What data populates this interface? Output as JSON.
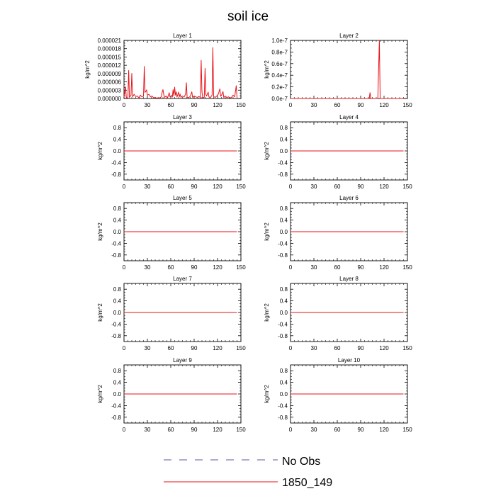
{
  "figure": {
    "title": "soil ice"
  },
  "legend": {
    "entries": [
      {
        "label": "No Obs",
        "color": "#5a5aa0",
        "style": "dashed"
      },
      {
        "label": "1850_149",
        "color": "#e8131a",
        "style": "solid"
      }
    ]
  },
  "chart_data": [
    {
      "type": "line",
      "title": "Layer 1",
      "ylabel": "kg/m^2",
      "xlim": [
        0,
        150
      ],
      "ylim": [
        0,
        2.1e-05
      ],
      "xticks": [
        "0",
        "30",
        "60",
        "90",
        "120",
        "150"
      ],
      "yticks": [
        0,
        3e-06,
        6e-06,
        9e-06,
        1.2e-05,
        1.5e-05,
        1.8e-05,
        2.1e-05
      ],
      "ytick_labels": [
        "0.000000",
        "0.000003",
        "0.000006",
        "0.000009",
        "0.000012",
        "0.000015",
        "0.000018",
        "0.000021"
      ],
      "series": [
        {
          "name": "1850_149",
          "color": "#e8131a",
          "points": [
            [
              0,
              5e-07
            ],
            [
              2,
              4.2e-06
            ],
            [
              3,
              3e-07
            ],
            [
              5,
              1e-07
            ],
            [
              6,
              1.01e-05
            ],
            [
              7,
              4e-07
            ],
            [
              9,
              1.2e-06
            ],
            [
              10,
              9.1e-06
            ],
            [
              11,
              6e-07
            ],
            [
              13,
              1.5e-06
            ],
            [
              15,
              7e-07
            ],
            [
              17,
              9e-07
            ],
            [
              19,
              3e-07
            ],
            [
              21,
              1.2e-06
            ],
            [
              23,
              6e-07
            ],
            [
              25,
              8e-07
            ],
            [
              26,
              1.16e-05
            ],
            [
              27,
              2.2e-06
            ],
            [
              28,
              2.6e-06
            ],
            [
              29,
              3.1e-06
            ],
            [
              30,
              1.2e-06
            ],
            [
              32,
              1.5e-06
            ],
            [
              34,
              6e-07
            ],
            [
              36,
              9e-07
            ],
            [
              38,
              2e-07
            ],
            [
              40,
              4e-07
            ],
            [
              42,
              1e-07
            ],
            [
              44,
              3e-07
            ],
            [
              46,
              1e-07
            ],
            [
              48,
              7e-07
            ],
            [
              49,
              2.3e-06
            ],
            [
              50,
              3.2e-06
            ],
            [
              51,
              1.4e-06
            ],
            [
              52,
              4e-07
            ],
            [
              54,
              9e-07
            ],
            [
              56,
              3e-07
            ],
            [
              58,
              2.1e-06
            ],
            [
              59,
              6e-07
            ],
            [
              61,
              1.1e-06
            ],
            [
              62,
              5e-07
            ],
            [
              63,
              3.2e-06
            ],
            [
              64,
              9e-07
            ],
            [
              65,
              4.1e-06
            ],
            [
              66,
              1.2e-06
            ],
            [
              67,
              2.4e-06
            ],
            [
              68,
              5e-07
            ],
            [
              70,
              2.3e-06
            ],
            [
              71,
              6e-07
            ],
            [
              72,
              1.6e-06
            ],
            [
              73,
              4e-07
            ],
            [
              75,
              9e-07
            ],
            [
              77,
              5e-07
            ],
            [
              79,
              1.5e-06
            ],
            [
              80,
              5.7e-06
            ],
            [
              81,
              4e-07
            ],
            [
              83,
              3e-07
            ],
            [
              85,
              8e-07
            ],
            [
              87,
              2.4e-06
            ],
            [
              88,
              4e-07
            ],
            [
              90,
              9e-07
            ],
            [
              92,
              6e-07
            ],
            [
              94,
              4e-07
            ],
            [
              96,
              7e-07
            ],
            [
              97,
              6e-07
            ],
            [
              98,
              2e-07
            ],
            [
              99,
              1.38e-05
            ],
            [
              100,
              2.5e-06
            ],
            [
              101,
              3e-07
            ],
            [
              103,
              4e-07
            ],
            [
              104,
              1.09e-05
            ],
            [
              105,
              1.5e-06
            ],
            [
              106,
              9e-07
            ],
            [
              108,
              2.3e-06
            ],
            [
              109,
              5e-07
            ],
            [
              111,
              4e-07
            ],
            [
              113,
              1.2e-06
            ],
            [
              114,
              1.84e-05
            ],
            [
              115,
              7e-07
            ],
            [
              117,
              4e-07
            ],
            [
              119,
              9e-07
            ],
            [
              121,
              1.6e-06
            ],
            [
              123,
              3.5e-06
            ],
            [
              124,
              8e-07
            ],
            [
              125,
              1.1e-06
            ],
            [
              126,
              1.8e-06
            ],
            [
              127,
              2.5e-06
            ],
            [
              128,
              4e-07
            ],
            [
              130,
              9e-07
            ],
            [
              132,
              3e-07
            ],
            [
              134,
              6e-07
            ],
            [
              136,
              2e-07
            ],
            [
              138,
              4e-07
            ],
            [
              140,
              1.2e-06
            ],
            [
              142,
              6e-07
            ],
            [
              144,
              4.6e-06
            ],
            [
              145,
              3e-07
            ]
          ]
        }
      ]
    },
    {
      "type": "line",
      "title": "Layer 2",
      "ylabel": "kg/m^2",
      "xlim": [
        0,
        150
      ],
      "ylim": [
        0,
        1e-07
      ],
      "xticks": [
        "0",
        "30",
        "60",
        "90",
        "120",
        "150"
      ],
      "yticks": [
        0,
        2e-08,
        4e-08,
        6e-08,
        8e-08,
        1e-07
      ],
      "ytick_labels": [
        "0.0e-7",
        "0.2e-7",
        "0.4e-7",
        "0.6e-7",
        "0.8e-7",
        "1.0e-7"
      ],
      "series": [
        {
          "name": "1850_149",
          "color": "#e8131a",
          "points": [
            [
              0,
              0
            ],
            [
              101,
              0
            ],
            [
              102,
              1e-08
            ],
            [
              103,
              0
            ],
            [
              112,
              0
            ],
            [
              114,
              1e-07
            ],
            [
              115,
              0
            ],
            [
              145,
              0
            ]
          ]
        }
      ]
    },
    {
      "type": "line",
      "title": "Layer 3",
      "ylabel": "kg/m^2",
      "xlim": [
        0,
        150
      ],
      "ylim": [
        -1,
        1
      ],
      "xticks": [
        "0",
        "30",
        "60",
        "90",
        "120",
        "150"
      ],
      "yticks": [
        -0.8,
        -0.4,
        0,
        0.4,
        0.8
      ],
      "ytick_labels": [
        "-0.8",
        "-0.4",
        "0.0",
        "0.4",
        "0.8"
      ],
      "series": [
        {
          "name": "1850_149",
          "color": "#e8131a",
          "points": [
            [
              0,
              0
            ],
            [
              145,
              0
            ]
          ]
        }
      ]
    },
    {
      "type": "line",
      "title": "Layer 4",
      "ylabel": "kg/m^2",
      "xlim": [
        0,
        150
      ],
      "ylim": [
        -1,
        1
      ],
      "xticks": [
        "0",
        "30",
        "60",
        "90",
        "120",
        "150"
      ],
      "yticks": [
        -0.8,
        -0.4,
        0,
        0.4,
        0.8
      ],
      "ytick_labels": [
        "-0.8",
        "-0.4",
        "0.0",
        "0.4",
        "0.8"
      ],
      "series": [
        {
          "name": "1850_149",
          "color": "#e8131a",
          "points": [
            [
              0,
              0
            ],
            [
              145,
              0
            ]
          ]
        }
      ]
    },
    {
      "type": "line",
      "title": "Layer 5",
      "ylabel": "kg/m^2",
      "xlim": [
        0,
        150
      ],
      "ylim": [
        -1,
        1
      ],
      "xticks": [
        "0",
        "30",
        "60",
        "90",
        "120",
        "150"
      ],
      "yticks": [
        -0.8,
        -0.4,
        0,
        0.4,
        0.8
      ],
      "ytick_labels": [
        "-0.8",
        "-0.4",
        "0.0",
        "0.4",
        "0.8"
      ],
      "series": [
        {
          "name": "1850_149",
          "color": "#e8131a",
          "points": [
            [
              0,
              0
            ],
            [
              145,
              0
            ]
          ]
        }
      ]
    },
    {
      "type": "line",
      "title": "Layer 6",
      "ylabel": "kg/m^2",
      "xlim": [
        0,
        150
      ],
      "ylim": [
        -1,
        1
      ],
      "xticks": [
        "0",
        "30",
        "60",
        "90",
        "120",
        "150"
      ],
      "yticks": [
        -0.8,
        -0.4,
        0,
        0.4,
        0.8
      ],
      "ytick_labels": [
        "-0.8",
        "-0.4",
        "0.0",
        "0.4",
        "0.8"
      ],
      "series": [
        {
          "name": "1850_149",
          "color": "#e8131a",
          "points": [
            [
              0,
              0
            ],
            [
              145,
              0
            ]
          ]
        }
      ]
    },
    {
      "type": "line",
      "title": "Layer 7",
      "ylabel": "kg/m^2",
      "xlim": [
        0,
        150
      ],
      "ylim": [
        -1,
        1
      ],
      "xticks": [
        "0",
        "30",
        "60",
        "90",
        "120",
        "150"
      ],
      "yticks": [
        -0.8,
        -0.4,
        0,
        0.4,
        0.8
      ],
      "ytick_labels": [
        "-0.8",
        "-0.4",
        "0.0",
        "0.4",
        "0.8"
      ],
      "series": [
        {
          "name": "1850_149",
          "color": "#e8131a",
          "points": [
            [
              0,
              0
            ],
            [
              145,
              0
            ]
          ]
        }
      ]
    },
    {
      "type": "line",
      "title": "Layer 8",
      "ylabel": "kg/m^2",
      "xlim": [
        0,
        150
      ],
      "ylim": [
        -1,
        1
      ],
      "xticks": [
        "0",
        "30",
        "60",
        "90",
        "120",
        "150"
      ],
      "yticks": [
        -0.8,
        -0.4,
        0,
        0.4,
        0.8
      ],
      "ytick_labels": [
        "-0.8",
        "-0.4",
        "0.0",
        "0.4",
        "0.8"
      ],
      "series": [
        {
          "name": "1850_149",
          "color": "#e8131a",
          "points": [
            [
              0,
              0
            ],
            [
              145,
              0
            ]
          ]
        }
      ]
    },
    {
      "type": "line",
      "title": "Layer 9",
      "ylabel": "kg/m^2",
      "xlim": [
        0,
        150
      ],
      "ylim": [
        -1,
        1
      ],
      "xticks": [
        "0",
        "30",
        "60",
        "90",
        "120",
        "150"
      ],
      "yticks": [
        -0.8,
        -0.4,
        0,
        0.4,
        0.8
      ],
      "ytick_labels": [
        "-0.8",
        "-0.4",
        "0.0",
        "0.4",
        "0.8"
      ],
      "series": [
        {
          "name": "1850_149",
          "color": "#e8131a",
          "points": [
            [
              0,
              0
            ],
            [
              145,
              0
            ]
          ]
        }
      ]
    },
    {
      "type": "line",
      "title": "Layer 10",
      "ylabel": "kg/m^2",
      "xlim": [
        0,
        150
      ],
      "ylim": [
        -1,
        1
      ],
      "xticks": [
        "0",
        "30",
        "60",
        "90",
        "120",
        "150"
      ],
      "yticks": [
        -0.8,
        -0.4,
        0,
        0.4,
        0.8
      ],
      "ytick_labels": [
        "-0.8",
        "-0.4",
        "0.0",
        "0.4",
        "0.8"
      ],
      "series": [
        {
          "name": "1850_149",
          "color": "#e8131a",
          "points": [
            [
              0,
              0
            ],
            [
              145,
              0
            ]
          ]
        }
      ]
    }
  ]
}
